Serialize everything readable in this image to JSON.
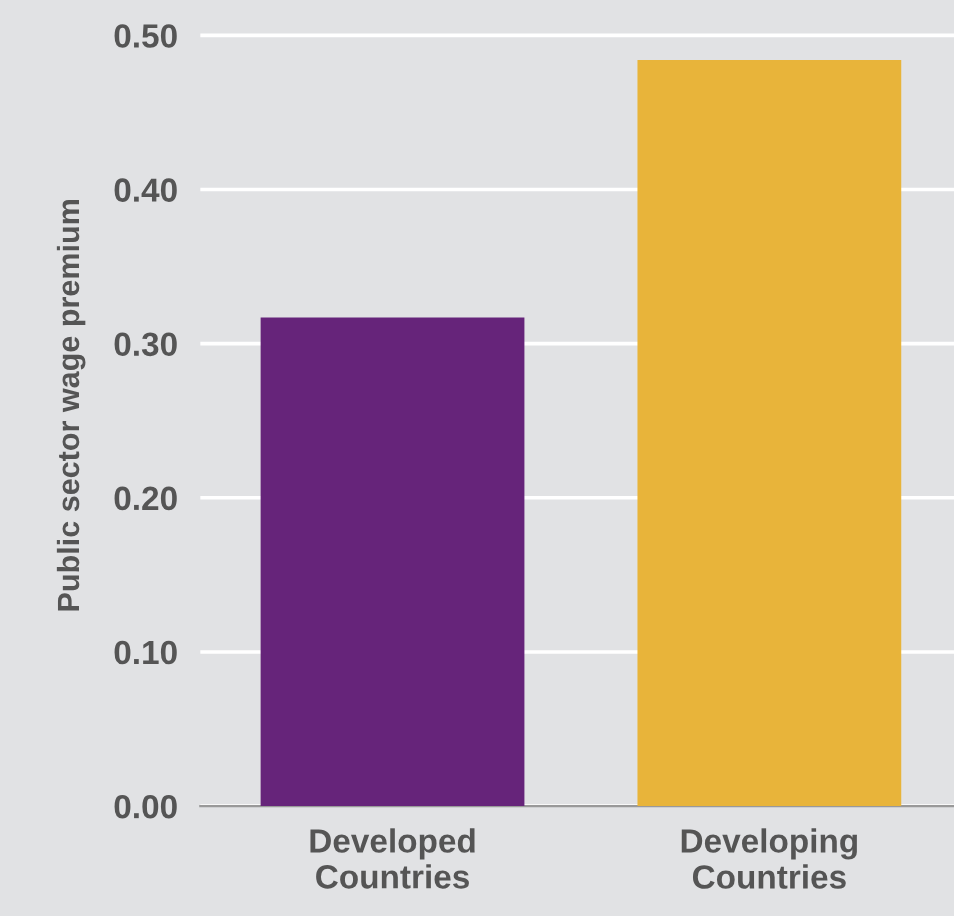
{
  "chart_data": {
    "type": "bar",
    "ylabel": "Public sector wage premium",
    "categories": [
      "Developed\nCountries",
      "Developing\nCountries"
    ],
    "values": [
      0.317,
      0.484
    ],
    "colors": [
      "#66247a",
      "#e8b43a"
    ],
    "ylim": [
      0,
      0.52
    ],
    "yticks": [
      {
        "value": 0,
        "label": "0.00"
      },
      {
        "value": 0.1,
        "label": "0.10"
      },
      {
        "value": 0.2,
        "label": "0.20"
      },
      {
        "value": 0.3,
        "label": "0.30"
      },
      {
        "value": 0.4,
        "label": "0.40"
      },
      {
        "value": 0.5,
        "label": "0.50"
      }
    ],
    "grid": "y",
    "legend": false
  }
}
